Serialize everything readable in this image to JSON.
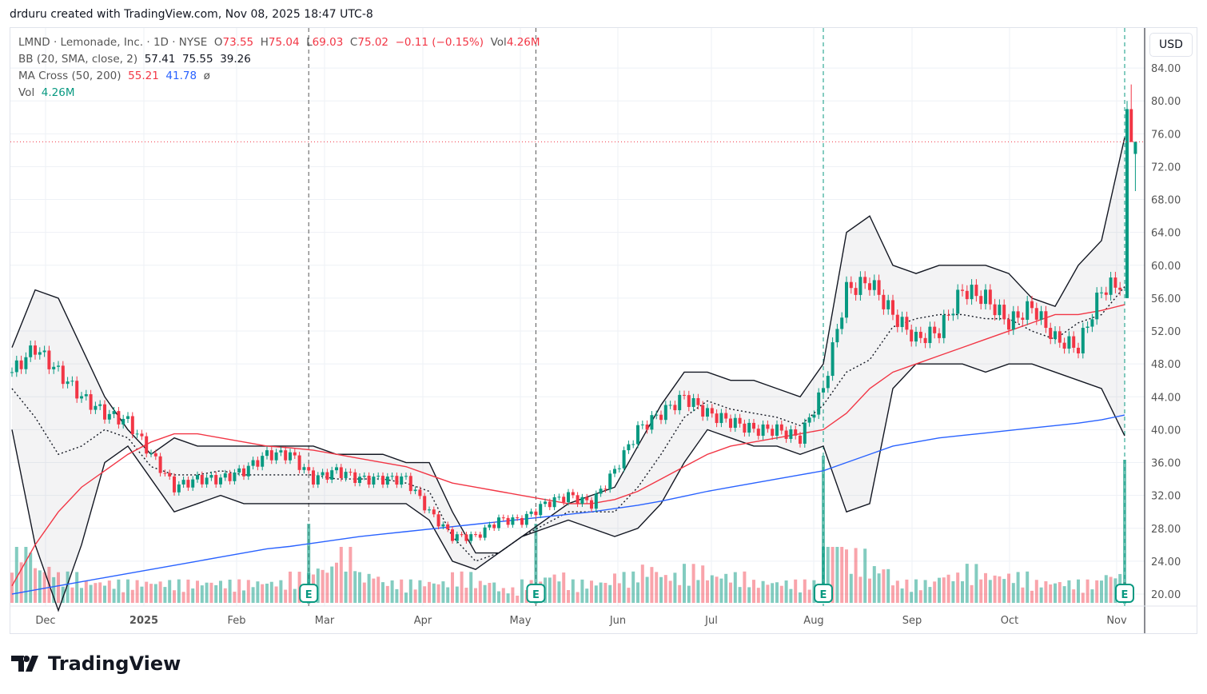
{
  "credit": "drduru created with TradingView.com, Nov 08, 2025 18:47 UTC-8",
  "legend": {
    "symbol": "LMND · Lemonade, Inc. · 1D · NYSE",
    "o_label": "O",
    "o": "73.55",
    "h_label": "H",
    "h": "75.04",
    "l_label": "L",
    "l": "69.03",
    "c_label": "C",
    "c": "75.02",
    "change": "−0.11 (−0.15%)",
    "vol_label": "Vol",
    "vol": "4.26M",
    "bb_label": "BB (20, SMA, close, 2)",
    "bb_mid": "57.41",
    "bb_up": "75.55",
    "bb_low": "39.26",
    "ma_label": "MA Cross (50, 200)",
    "ma50": "55.21",
    "ma200": "41.78",
    "ma_symbol": "ø",
    "vol2_label": "Vol",
    "vol2": "4.26M"
  },
  "currency": "USD",
  "logo": "TradingView",
  "colors": {
    "up": "#089981",
    "down": "#f23645",
    "ma50": "#f23645",
    "ma200": "#2962ff",
    "bb": "#131722"
  },
  "chart_data": {
    "type": "candlestick",
    "title": "LMND daily",
    "ylim": [
      20,
      84
    ],
    "y_ticks": [
      "84.00",
      "80.00",
      "76.00",
      "72.00",
      "68.00",
      "64.00",
      "60.00",
      "56.00",
      "52.00",
      "48.00",
      "44.00",
      "40.00",
      "36.00",
      "32.00",
      "28.00",
      "24.00",
      "20.00"
    ],
    "x_ticks": [
      "Dec",
      "2025",
      "Feb",
      "Mar",
      "Apr",
      "May",
      "Jun",
      "Jul",
      "Aug",
      "Sep",
      "Oct",
      "Nov"
    ],
    "last_price": 75.02,
    "weekly_close": [
      47,
      50,
      47,
      44,
      42,
      41,
      37,
      33,
      34,
      34,
      35,
      37,
      37,
      34,
      35,
      34,
      34,
      34,
      30,
      27,
      27,
      29,
      29,
      31,
      32,
      31,
      35,
      40,
      42,
      44,
      42,
      41,
      40,
      40,
      39,
      45,
      57,
      58,
      54,
      51,
      52,
      57,
      56,
      53,
      55,
      51,
      50,
      57,
      58
    ],
    "final_days": [
      {
        "o": 56,
        "h": 80,
        "l": 56,
        "c": 79
      },
      {
        "o": 79,
        "h": 82,
        "l": 75,
        "c": 75
      },
      {
        "o": 73.55,
        "h": 75.04,
        "l": 69.03,
        "c": 75.02
      }
    ],
    "bb_upper": [
      50,
      57,
      56,
      50,
      44,
      40,
      37,
      39,
      38,
      38,
      38,
      38,
      38,
      38,
      37,
      37,
      37,
      36,
      36,
      30,
      25,
      25,
      27,
      29,
      31,
      32,
      33,
      38,
      43,
      47,
      47,
      46,
      46,
      45,
      44,
      48,
      64,
      66,
      60,
      59,
      60,
      60,
      60,
      59,
      56,
      55,
      60,
      63,
      75.55
    ],
    "bb_lower": [
      40,
      26,
      18,
      26,
      36,
      38,
      34,
      30,
      31,
      32,
      31,
      31,
      31,
      31,
      31,
      31,
      31,
      31,
      29,
      24,
      23,
      25,
      27,
      28,
      29,
      28,
      27,
      28,
      31,
      36,
      40,
      39,
      38,
      38,
      37,
      38,
      30,
      31,
      45,
      48,
      48,
      48,
      47,
      48,
      48,
      47,
      46,
      45,
      39.26
    ],
    "ma50": [
      21,
      26,
      30,
      33,
      35,
      37,
      38.5,
      39.5,
      39.5,
      39,
      38.5,
      38,
      37.8,
      37.5,
      37,
      36.5,
      36,
      35.5,
      34.5,
      33.5,
      33,
      32.5,
      32,
      31.5,
      31,
      31,
      31.5,
      32.5,
      34,
      35.5,
      37,
      38,
      38.5,
      39,
      39.5,
      40,
      42,
      45,
      47,
      48,
      49,
      50,
      51,
      52,
      53,
      54,
      54,
      54.5,
      55.21
    ],
    "ma200": [
      20,
      20.5,
      21,
      21.5,
      22,
      22.5,
      23,
      23.5,
      24,
      24.5,
      25,
      25.5,
      25.8,
      26.2,
      26.6,
      27,
      27.3,
      27.6,
      27.9,
      28.2,
      28.5,
      28.8,
      29.1,
      29.4,
      29.7,
      30,
      30.4,
      30.8,
      31.3,
      31.9,
      32.5,
      33,
      33.5,
      34,
      34.5,
      35,
      36,
      37,
      38,
      38.5,
      39,
      39.3,
      39.6,
      39.9,
      40.2,
      40.5,
      40.8,
      41.2,
      41.78
    ],
    "weekly_volume_m": [
      9,
      5,
      4,
      3,
      3,
      3,
      3,
      3,
      3,
      3,
      3,
      3,
      4,
      5,
      8,
      4,
      3,
      3,
      3,
      4,
      3,
      2,
      3,
      4,
      3,
      3,
      4,
      5,
      4,
      5,
      4,
      4,
      3,
      3,
      3,
      12,
      7,
      5,
      3,
      3,
      4,
      5,
      4,
      4,
      3,
      3,
      3,
      4,
      4
    ],
    "earnings_labels": [
      "E",
      "E",
      "E",
      "E"
    ],
    "earnings_week": [
      12.8,
      22.6,
      35,
      48
    ]
  }
}
